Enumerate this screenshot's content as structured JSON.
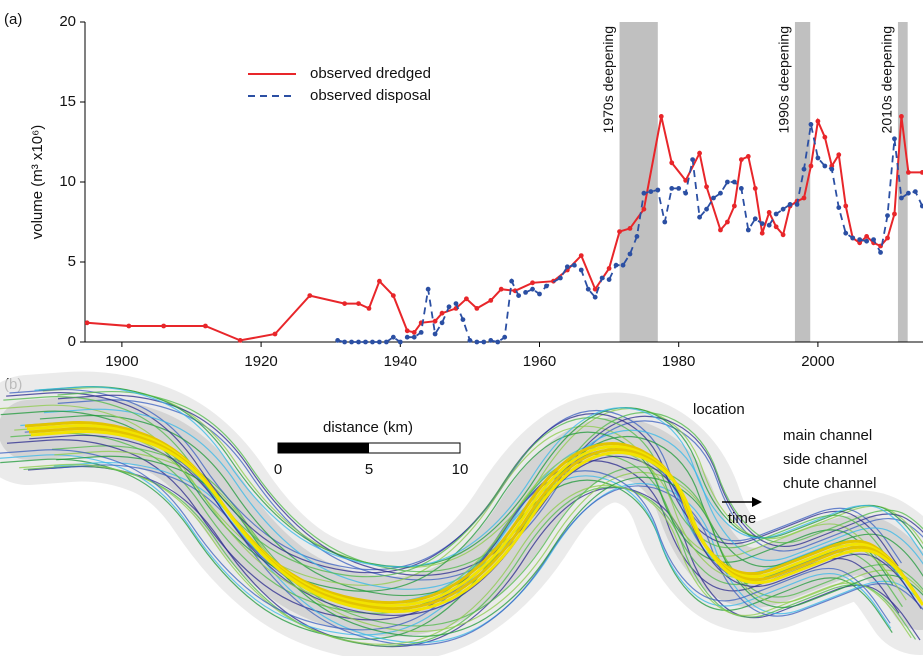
{
  "chart_data": {
    "type": "line",
    "panel_label": "(a)",
    "ylabel": "volume (m³ x10⁶)",
    "xlim": [
      1894.7,
      2015.1
    ],
    "xticks": [
      1900,
      1920,
      1940,
      1960,
      1980,
      2000
    ],
    "ylim": [
      0,
      20
    ],
    "yticks": [
      0,
      5,
      10,
      15,
      20
    ],
    "legend": "upper left",
    "shaded_regions": [
      {
        "label": "1970s deepening",
        "xlim": [
          1971.5,
          1977
        ]
      },
      {
        "label": "1990s deepening",
        "xlim": [
          1996.7,
          1998.9
        ]
      },
      {
        "label": "2010s deepening",
        "xlim": [
          2011.5,
          2012.9
        ]
      }
    ],
    "series": [
      {
        "name": "observed dredged",
        "color": "#e8262a",
        "dash": false,
        "x": [
          1895,
          1901,
          1906,
          1912,
          1917,
          1922,
          1927,
          1932,
          1934,
          1935.5,
          1937,
          1939,
          1941,
          1942,
          1943,
          1945,
          1946,
          1948,
          1949.5,
          1951,
          1953,
          1954.5,
          1956.5,
          1959,
          1962,
          1964,
          1966,
          1968,
          1970,
          1971.5,
          1973,
          1975,
          1977.5,
          1979,
          1981,
          1983,
          1984,
          1986,
          1987,
          1988,
          1989,
          1990,
          1991,
          1992,
          1993,
          1994,
          1995,
          1996,
          1997,
          1998,
          1999,
          2000,
          2001,
          2002,
          2003,
          2004,
          2005,
          2006,
          2007,
          2008,
          2009,
          2010,
          2011,
          2012,
          2013,
          2015
        ],
        "values": [
          1.2,
          1.0,
          1.0,
          1.0,
          0.1,
          0.5,
          2.9,
          2.4,
          2.4,
          2.1,
          3.8,
          2.9,
          0.7,
          0.6,
          1.2,
          1.3,
          1.8,
          2.1,
          2.7,
          2.1,
          2.6,
          3.3,
          3.2,
          3.7,
          3.8,
          4.5,
          5.4,
          3.3,
          4.6,
          6.9,
          7.1,
          8.3,
          14.1,
          11.2,
          10.1,
          11.8,
          9.7,
          7.0,
          7.5,
          8.5,
          11.4,
          11.6,
          9.6,
          6.8,
          8.1,
          7.2,
          6.7,
          8.5,
          8.8,
          9.0,
          11.0,
          13.8,
          12.8,
          11.0,
          11.7,
          8.5,
          6.5,
          6.2,
          6.6,
          6.2,
          6.0,
          6.5,
          8.0,
          14.1,
          10.6,
          10.6
        ]
      },
      {
        "name": "observed disposal",
        "color": "#2b4fa3",
        "dash": true,
        "x": [
          1931,
          1932,
          1933,
          1934,
          1935,
          1936,
          1937,
          1938,
          1939,
          1940,
          1941,
          1942,
          1943,
          1944,
          1945,
          1946,
          1947,
          1948,
          1949,
          1950,
          1951,
          1952,
          1953,
          1954,
          1955,
          1956,
          1957,
          1958,
          1959,
          1960,
          1961,
          1963,
          1964,
          1965,
          1966,
          1967,
          1968,
          1969,
          1970,
          1971,
          1972,
          1973,
          1974,
          1975,
          1976,
          1977,
          1978,
          1979,
          1980,
          1981,
          1982,
          1983,
          1984,
          1985,
          1986,
          1987,
          1988,
          1989,
          1990,
          1991,
          1992,
          1993,
          1994,
          1995,
          1996,
          1997,
          1998,
          1999,
          2000,
          2001,
          2002,
          2003,
          2004,
          2005,
          2006,
          2007,
          2008,
          2009,
          2010,
          2011,
          2012,
          2013,
          2014,
          2015
        ],
        "values": [
          0.1,
          0.0,
          0.0,
          0.0,
          0.0,
          0.0,
          0.0,
          0.0,
          0.3,
          0.0,
          0.3,
          0.3,
          0.6,
          3.3,
          0.5,
          1.2,
          2.2,
          2.4,
          1.4,
          0.1,
          0.0,
          0.0,
          0.1,
          0.0,
          0.3,
          3.8,
          2.9,
          3.1,
          3.3,
          3.0,
          3.5,
          4.0,
          4.7,
          4.8,
          4.5,
          3.3,
          2.8,
          4.0,
          3.9,
          4.8,
          4.8,
          5.5,
          6.6,
          9.3,
          9.4,
          9.5,
          7.5,
          9.6,
          9.6,
          9.3,
          11.4,
          7.8,
          8.3,
          9.0,
          9.3,
          10.0,
          10.0,
          9.6,
          7.0,
          7.7,
          7.4,
          7.3,
          8.0,
          8.3,
          8.6,
          8.6,
          10.8,
          13.6,
          11.5,
          11.0,
          10.8,
          8.4,
          6.8,
          6.5,
          6.4,
          6.3,
          6.4,
          5.6,
          7.9,
          12.7,
          9.0,
          9.3,
          9.4,
          8.5
        ]
      }
    ]
  },
  "panel_b": {
    "label": "(b)",
    "legend_title": "location",
    "legend": [
      "main channel",
      "side channel",
      "chute channel"
    ],
    "time_label": "time",
    "scale_title": "distance (km)",
    "scale_ticks": [
      "0",
      "5",
      "10"
    ]
  }
}
